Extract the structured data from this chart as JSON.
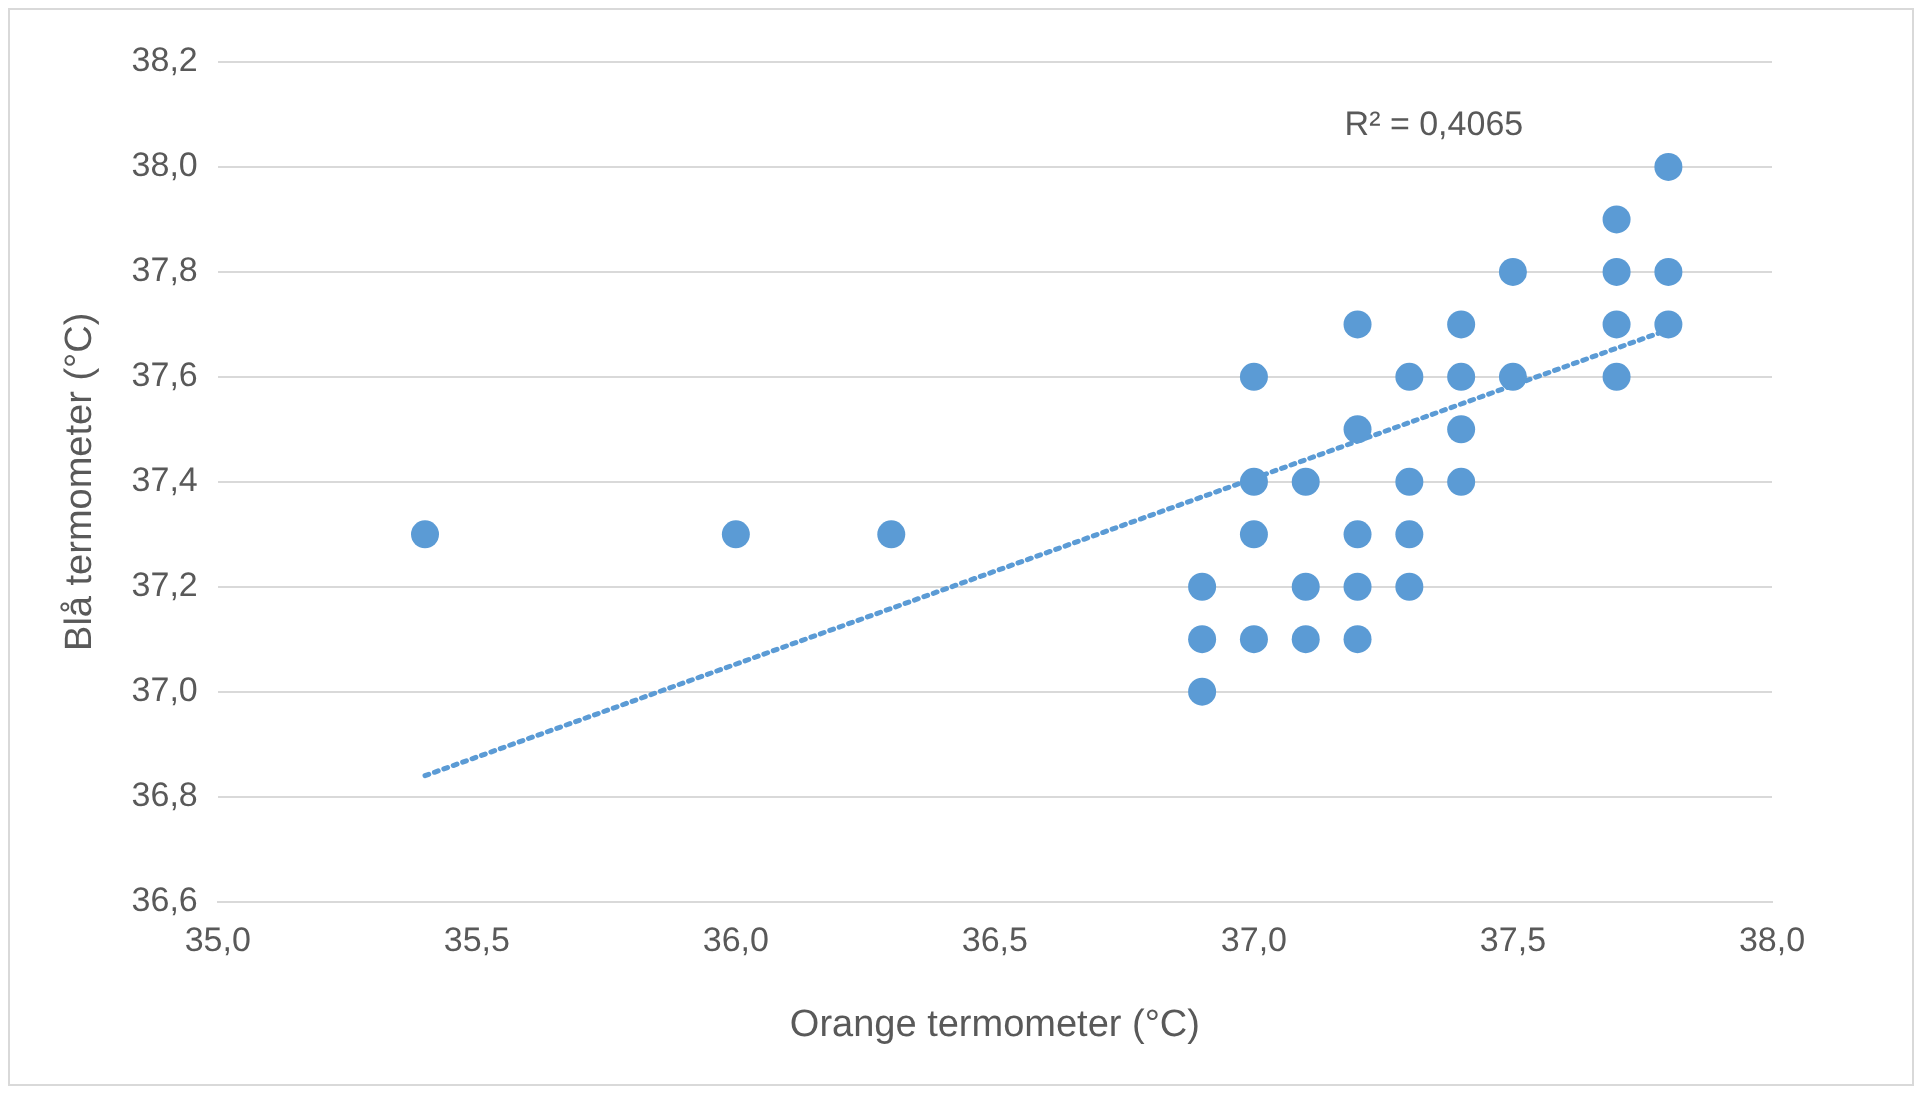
{
  "chart_data": {
    "type": "scatter",
    "xlabel": "Orange termometer (°C)",
    "ylabel": "Blå termometer (°C)",
    "xlim": [
      35.0,
      38.0
    ],
    "ylim": [
      36.6,
      38.2
    ],
    "xticks": [
      {
        "value": 35.0,
        "label": "35,0"
      },
      {
        "value": 35.5,
        "label": "35,5"
      },
      {
        "value": 36.0,
        "label": "36,0"
      },
      {
        "value": 36.5,
        "label": "36,5"
      },
      {
        "value": 37.0,
        "label": "37,0"
      },
      {
        "value": 37.5,
        "label": "37,5"
      },
      {
        "value": 38.0,
        "label": "38,0"
      }
    ],
    "yticks": [
      {
        "value": 36.6,
        "label": "36,6"
      },
      {
        "value": 36.8,
        "label": "36,8"
      },
      {
        "value": 37.0,
        "label": "37,0"
      },
      {
        "value": 37.2,
        "label": "37,2"
      },
      {
        "value": 37.4,
        "label": "37,4"
      },
      {
        "value": 37.6,
        "label": "37,6"
      },
      {
        "value": 37.8,
        "label": "37,8"
      },
      {
        "value": 38.0,
        "label": "38,0"
      },
      {
        "value": 38.2,
        "label": "38,2"
      }
    ],
    "grid": "y",
    "legend": false,
    "marker": "circle",
    "annotations": [
      "R² = 0,4065"
    ],
    "series": [
      {
        "color": "#5b9bd5",
        "x": [
          35.4,
          36.0,
          36.3,
          36.9,
          36.9,
          36.9,
          37.0,
          37.0,
          37.0,
          37.0,
          37.1,
          37.1,
          37.1,
          37.2,
          37.2,
          37.2,
          37.2,
          37.2,
          37.3,
          37.3,
          37.3,
          37.3,
          37.4,
          37.4,
          37.4,
          37.4,
          37.5,
          37.5,
          37.7,
          37.7,
          37.7,
          37.7,
          37.8,
          37.8,
          37.8
        ],
        "values": [
          37.3,
          37.3,
          37.3,
          37.2,
          37.1,
          37.0,
          37.6,
          37.4,
          37.3,
          37.1,
          37.4,
          37.2,
          37.1,
          37.7,
          37.5,
          37.3,
          37.2,
          37.1,
          37.6,
          37.4,
          37.3,
          37.2,
          37.7,
          37.6,
          37.5,
          37.4,
          37.8,
          37.6,
          37.9,
          37.8,
          37.7,
          37.6,
          38.0,
          37.8,
          37.7
        ]
      },
      {
        "type": "line",
        "color": "#5b9bd5",
        "line_style": "dotted",
        "marker": "none",
        "x": [
          35.4,
          37.8
        ],
        "values": [
          36.84,
          37.69
        ]
      }
    ]
  }
}
